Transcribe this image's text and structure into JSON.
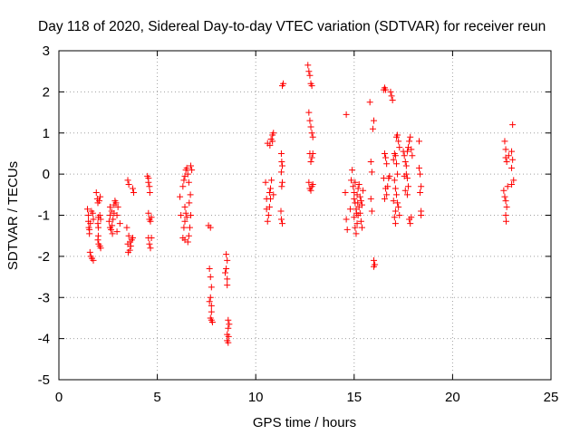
{
  "chart_data": {
    "type": "scatter",
    "title": "Day 118 of 2020, Sidereal Day-to-day VTEC variation (SDTVAR) for receiver reun",
    "xlabel": "GPS time / hours",
    "ylabel": "SDTVAR / TECUs",
    "xlim": [
      0,
      25
    ],
    "ylim": [
      -5,
      3
    ],
    "xticks": [
      0,
      5,
      10,
      15,
      20,
      25
    ],
    "yticks": [
      -5,
      -4,
      -3,
      -2,
      -1,
      0,
      1,
      2,
      3
    ],
    "xtick_labels": [
      "0",
      "5",
      "10",
      "15",
      "20",
      "25"
    ],
    "ytick_labels": [
      "-5",
      "-4",
      "-3",
      "-2",
      "-1",
      "0",
      "1",
      "2",
      "3"
    ],
    "grid": true,
    "marker": "+",
    "color": "#ff0000",
    "series": [
      {
        "name": "SDTVAR",
        "points": [
          [
            1.45,
            -0.85
          ],
          [
            1.5,
            -1.0
          ],
          [
            1.5,
            -1.15
          ],
          [
            1.52,
            -1.3
          ],
          [
            1.55,
            -1.45
          ],
          [
            1.58,
            -1.9
          ],
          [
            1.62,
            -2.0
          ],
          [
            1.68,
            -2.05
          ],
          [
            1.75,
            -2.1
          ],
          [
            1.72,
            -0.95
          ],
          [
            1.75,
            -1.1
          ],
          [
            1.6,
            -1.2
          ],
          [
            1.55,
            -1.35
          ],
          [
            1.65,
            -0.9
          ],
          [
            1.9,
            -0.45
          ],
          [
            1.95,
            -0.6
          ],
          [
            1.98,
            -0.7
          ],
          [
            2.0,
            -1.05
          ],
          [
            1.98,
            -1.2
          ],
          [
            2.0,
            -1.3
          ],
          [
            2.0,
            -1.5
          ],
          [
            1.98,
            -1.6
          ],
          [
            2.02,
            -1.7
          ],
          [
            2.08,
            -1.75
          ],
          [
            2.12,
            -1.8
          ],
          [
            2.1,
            -0.55
          ],
          [
            2.05,
            -0.65
          ],
          [
            2.12,
            -1.1
          ],
          [
            2.08,
            -1.0
          ],
          [
            2.6,
            -0.8
          ],
          [
            2.6,
            -1.0
          ],
          [
            2.55,
            -1.15
          ],
          [
            2.6,
            -1.3
          ],
          [
            2.65,
            -1.35
          ],
          [
            2.7,
            -1.25
          ],
          [
            2.75,
            -1.1
          ],
          [
            2.8,
            -0.95
          ],
          [
            2.8,
            -0.75
          ],
          [
            2.85,
            -0.65
          ],
          [
            2.9,
            -0.7
          ],
          [
            2.95,
            -1.0
          ],
          [
            2.95,
            -1.4
          ],
          [
            3.0,
            -0.8
          ],
          [
            2.68,
            -0.9
          ],
          [
            2.72,
            -1.45
          ],
          [
            3.1,
            -1.2
          ],
          [
            3.5,
            -0.15
          ],
          [
            3.55,
            -0.25
          ],
          [
            3.55,
            -1.5
          ],
          [
            3.5,
            -1.7
          ],
          [
            3.52,
            -1.9
          ],
          [
            3.6,
            -1.85
          ],
          [
            3.65,
            -1.75
          ],
          [
            3.7,
            -1.6
          ],
          [
            3.75,
            -1.55
          ],
          [
            3.75,
            -0.35
          ],
          [
            3.8,
            -0.45
          ],
          [
            3.62,
            -1.65
          ],
          [
            3.45,
            -1.3
          ],
          [
            4.5,
            -0.05
          ],
          [
            4.55,
            -0.1
          ],
          [
            4.55,
            -0.2
          ],
          [
            4.6,
            -0.3
          ],
          [
            4.62,
            -0.45
          ],
          [
            4.55,
            -0.95
          ],
          [
            4.6,
            -1.1
          ],
          [
            4.65,
            -1.15
          ],
          [
            4.7,
            -1.05
          ],
          [
            4.55,
            -1.55
          ],
          [
            4.6,
            -1.7
          ],
          [
            4.65,
            -1.8
          ],
          [
            4.7,
            -1.55
          ],
          [
            6.3,
            -0.3
          ],
          [
            6.35,
            -0.15
          ],
          [
            6.4,
            -0.05
          ],
          [
            6.45,
            0.1
          ],
          [
            6.5,
            0.15
          ],
          [
            6.55,
            0.0
          ],
          [
            6.6,
            -0.2
          ],
          [
            6.4,
            -0.8
          ],
          [
            6.45,
            -0.95
          ],
          [
            6.5,
            -1.05
          ],
          [
            6.4,
            -1.15
          ],
          [
            6.35,
            -1.3
          ],
          [
            6.3,
            -1.55
          ],
          [
            6.4,
            -1.6
          ],
          [
            6.55,
            -1.65
          ],
          [
            6.6,
            -1.5
          ],
          [
            6.65,
            -1.3
          ],
          [
            6.7,
            -1.0
          ],
          [
            6.62,
            -0.7
          ],
          [
            6.68,
            -0.5
          ],
          [
            6.7,
            0.2
          ],
          [
            6.75,
            0.1
          ],
          [
            6.2,
            -1.0
          ],
          [
            6.15,
            -0.55
          ],
          [
            7.6,
            -1.25
          ],
          [
            7.7,
            -1.3
          ],
          [
            7.65,
            -2.3
          ],
          [
            7.7,
            -2.5
          ],
          [
            7.75,
            -2.75
          ],
          [
            7.7,
            -3.0
          ],
          [
            7.75,
            -3.2
          ],
          [
            7.75,
            -3.35
          ],
          [
            7.7,
            -3.5
          ],
          [
            7.75,
            -3.55
          ],
          [
            7.8,
            -3.6
          ],
          [
            7.65,
            -3.1
          ],
          [
            8.5,
            -1.95
          ],
          [
            8.55,
            -2.1
          ],
          [
            8.5,
            -2.3
          ],
          [
            8.55,
            -2.55
          ],
          [
            8.55,
            -2.7
          ],
          [
            8.6,
            -3.55
          ],
          [
            8.6,
            -3.75
          ],
          [
            8.55,
            -3.9
          ],
          [
            8.55,
            -4.05
          ],
          [
            8.6,
            -4.1
          ],
          [
            8.62,
            -3.95
          ],
          [
            8.65,
            -3.65
          ],
          [
            8.45,
            -2.4
          ],
          [
            10.55,
            -0.6
          ],
          [
            10.6,
            -1.15
          ],
          [
            10.65,
            -1.0
          ],
          [
            10.7,
            -0.8
          ],
          [
            10.75,
            -0.6
          ],
          [
            10.7,
            -0.45
          ],
          [
            10.75,
            -0.35
          ],
          [
            10.8,
            -0.15
          ],
          [
            10.72,
            0.7
          ],
          [
            10.78,
            0.85
          ],
          [
            10.85,
            0.95
          ],
          [
            10.9,
            1.0
          ],
          [
            10.85,
            0.8
          ],
          [
            10.6,
            0.75
          ],
          [
            10.5,
            -0.2
          ],
          [
            10.9,
            -0.5
          ],
          [
            10.55,
            -0.85
          ],
          [
            11.3,
            0.5
          ],
          [
            11.32,
            0.3
          ],
          [
            11.35,
            0.2
          ],
          [
            11.3,
            0.05
          ],
          [
            11.35,
            -0.2
          ],
          [
            11.32,
            -0.3
          ],
          [
            11.28,
            -0.9
          ],
          [
            11.3,
            -1.1
          ],
          [
            11.35,
            -1.2
          ],
          [
            11.35,
            2.15
          ],
          [
            11.4,
            2.2
          ],
          [
            12.65,
            2.65
          ],
          [
            12.7,
            2.5
          ],
          [
            12.75,
            2.4
          ],
          [
            12.8,
            2.2
          ],
          [
            12.85,
            2.15
          ],
          [
            12.7,
            1.5
          ],
          [
            12.75,
            1.3
          ],
          [
            12.8,
            1.15
          ],
          [
            12.85,
            1.0
          ],
          [
            12.9,
            0.9
          ],
          [
            12.75,
            0.5
          ],
          [
            12.8,
            0.3
          ],
          [
            12.85,
            0.4
          ],
          [
            12.9,
            0.5
          ],
          [
            12.7,
            -0.2
          ],
          [
            12.75,
            -0.35
          ],
          [
            12.8,
            -0.4
          ],
          [
            12.85,
            -0.3
          ],
          [
            12.9,
            -0.25
          ],
          [
            14.6,
            1.45
          ],
          [
            14.55,
            -0.45
          ],
          [
            14.6,
            -1.1
          ],
          [
            14.65,
            -1.35
          ],
          [
            14.8,
            -0.85
          ],
          [
            14.85,
            -0.15
          ],
          [
            14.9,
            0.1
          ],
          [
            14.95,
            -0.3
          ],
          [
            15.0,
            -0.45
          ],
          [
            15.0,
            -0.6
          ],
          [
            15.05,
            -0.7
          ],
          [
            15.1,
            -0.85
          ],
          [
            15.0,
            -1.05
          ],
          [
            15.05,
            -1.3
          ],
          [
            15.1,
            -1.45
          ],
          [
            15.15,
            -1.2
          ],
          [
            15.2,
            -1.0
          ],
          [
            15.25,
            -0.8
          ],
          [
            15.3,
            -0.55
          ],
          [
            15.35,
            -0.65
          ],
          [
            15.4,
            -0.75
          ],
          [
            15.3,
            -0.95
          ],
          [
            15.35,
            -1.15
          ],
          [
            15.4,
            -1.3
          ],
          [
            15.25,
            -0.25
          ],
          [
            15.45,
            -0.4
          ],
          [
            15.05,
            -0.2
          ],
          [
            15.15,
            -0.5
          ],
          [
            15.2,
            -0.35
          ],
          [
            15.12,
            -0.95
          ],
          [
            15.18,
            -0.7
          ],
          [
            15.8,
            1.75
          ],
          [
            15.85,
            0.3
          ],
          [
            15.9,
            0.05
          ],
          [
            15.85,
            -0.6
          ],
          [
            15.9,
            -0.9
          ],
          [
            15.95,
            1.1
          ],
          [
            16.0,
            1.3
          ],
          [
            16.0,
            -2.1
          ],
          [
            16.05,
            -2.2
          ],
          [
            16.0,
            -2.25
          ],
          [
            16.5,
            2.05
          ],
          [
            16.55,
            2.1
          ],
          [
            16.6,
            2.05
          ],
          [
            16.85,
            2.0
          ],
          [
            16.9,
            1.9
          ],
          [
            16.95,
            1.8
          ],
          [
            16.55,
            0.5
          ],
          [
            16.6,
            0.4
          ],
          [
            16.65,
            0.25
          ],
          [
            16.5,
            -0.1
          ],
          [
            16.6,
            -0.35
          ],
          [
            16.65,
            -0.5
          ],
          [
            16.7,
            -0.3
          ],
          [
            16.75,
            -0.1
          ],
          [
            16.55,
            -0.6
          ],
          [
            16.8,
            -0.05
          ],
          [
            17.0,
            0.35
          ],
          [
            17.05,
            0.5
          ],
          [
            17.1,
            0.45
          ],
          [
            17.15,
            0.25
          ],
          [
            17.2,
            0.0
          ],
          [
            17.05,
            -0.15
          ],
          [
            17.1,
            -0.35
          ],
          [
            17.15,
            -0.5
          ],
          [
            17.2,
            -0.7
          ],
          [
            17.1,
            -0.9
          ],
          [
            17.05,
            -1.05
          ],
          [
            17.1,
            -1.2
          ],
          [
            17.0,
            -0.65
          ],
          [
            17.25,
            -0.8
          ],
          [
            17.3,
            -1.0
          ],
          [
            17.15,
            0.9
          ],
          [
            17.2,
            0.95
          ],
          [
            17.25,
            0.8
          ],
          [
            17.3,
            0.65
          ],
          [
            17.5,
            0.55
          ],
          [
            17.55,
            0.45
          ],
          [
            17.6,
            0.3
          ],
          [
            17.65,
            0.2
          ],
          [
            17.7,
            0.55
          ],
          [
            17.75,
            0.65
          ],
          [
            17.8,
            0.8
          ],
          [
            17.85,
            0.9
          ],
          [
            17.65,
            0.0
          ],
          [
            17.7,
            -0.1
          ],
          [
            17.75,
            -0.3
          ],
          [
            17.6,
            -0.4
          ],
          [
            17.7,
            -0.5
          ],
          [
            17.8,
            -1.1
          ],
          [
            17.85,
            -1.2
          ],
          [
            17.9,
            -1.05
          ],
          [
            17.55,
            -0.05
          ],
          [
            17.9,
            0.6
          ],
          [
            17.95,
            0.45
          ],
          [
            18.3,
            0.8
          ],
          [
            18.35,
            0.0
          ],
          [
            18.4,
            -0.3
          ],
          [
            18.35,
            -0.45
          ],
          [
            18.4,
            -0.9
          ],
          [
            18.4,
            -1.0
          ],
          [
            18.3,
            0.15
          ],
          [
            22.65,
            0.8
          ],
          [
            22.7,
            0.6
          ],
          [
            22.7,
            0.4
          ],
          [
            22.75,
            0.3
          ],
          [
            22.6,
            -0.4
          ],
          [
            22.65,
            -0.55
          ],
          [
            22.7,
            -0.65
          ],
          [
            22.75,
            -0.8
          ],
          [
            22.7,
            -1.0
          ],
          [
            22.72,
            -1.15
          ],
          [
            22.8,
            -0.3
          ],
          [
            22.85,
            0.45
          ],
          [
            23.0,
            0.55
          ],
          [
            23.05,
            0.35
          ],
          [
            23.0,
            0.15
          ],
          [
            23.1,
            -0.15
          ],
          [
            23.05,
            1.2
          ],
          [
            23.0,
            -0.25
          ]
        ]
      }
    ]
  }
}
